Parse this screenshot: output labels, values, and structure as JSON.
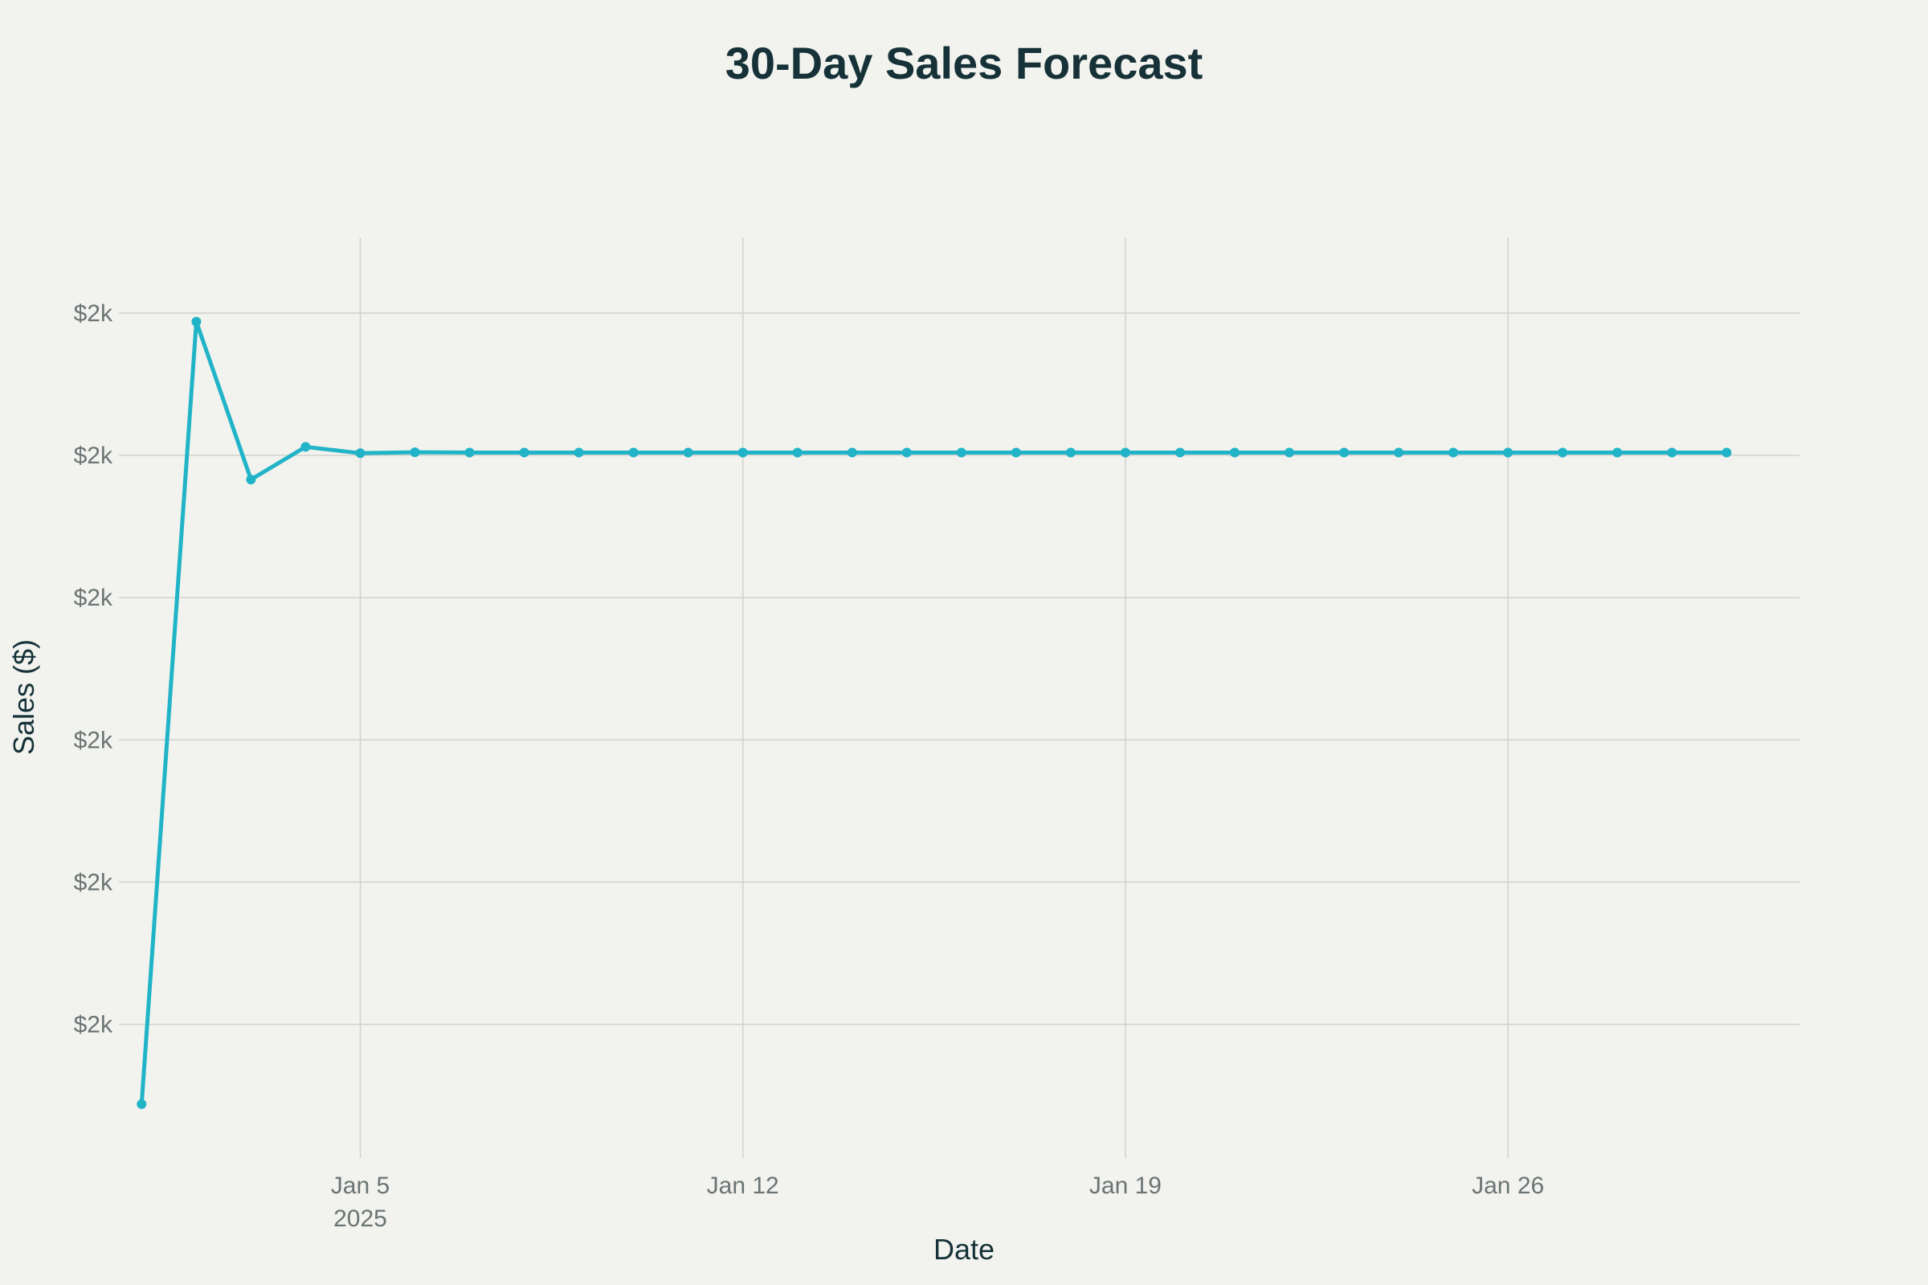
{
  "colors": {
    "background": "#f2f3ee",
    "series": "#21b3c7",
    "grid": "#cfd2cd",
    "title": "#163238",
    "tick": "#6b7374"
  },
  "chart_data": {
    "type": "line",
    "title": "30-Day Sales Forecast",
    "xlabel": "Date",
    "ylabel": "Sales ($)",
    "grid": true,
    "legend": "none",
    "x_range": [
      "2024-12-31T14:00",
      "2025-01-31T08:00"
    ],
    "x_ticks": [
      {
        "date": "2025-01-05",
        "label": "Jan 5",
        "sublabel": "2025"
      },
      {
        "date": "2025-01-12",
        "label": "Jan 12",
        "sublabel": ""
      },
      {
        "date": "2025-01-19",
        "label": "Jan 19",
        "sublabel": ""
      },
      {
        "date": "2025-01-26",
        "label": "Jan 26",
        "sublabel": ""
      }
    ],
    "y_range": [
      1690.6,
      1755.3
    ],
    "y_ticks": [
      {
        "value": 1700,
        "label": "$2k"
      },
      {
        "value": 1710,
        "label": "$2k"
      },
      {
        "value": 1720,
        "label": "$2k"
      },
      {
        "value": 1730,
        "label": "$2k"
      },
      {
        "value": 1740,
        "label": "$2k"
      },
      {
        "value": 1750,
        "label": "$2k"
      }
    ],
    "series": [
      {
        "x": [
          "2025-01-01",
          "2025-01-02",
          "2025-01-03",
          "2025-01-04",
          "2025-01-05",
          "2025-01-06",
          "2025-01-07",
          "2025-01-08",
          "2025-01-09",
          "2025-01-10",
          "2025-01-11",
          "2025-01-12",
          "2025-01-13",
          "2025-01-14",
          "2025-01-15",
          "2025-01-16",
          "2025-01-17",
          "2025-01-18",
          "2025-01-19",
          "2025-01-20",
          "2025-01-21",
          "2025-01-22",
          "2025-01-23",
          "2025-01-24",
          "2025-01-25",
          "2025-01-26",
          "2025-01-27",
          "2025-01-28",
          "2025-01-29",
          "2025-01-30"
        ],
        "values": [
          1694.4,
          1749.4,
          1738.3,
          1740.6,
          1740.15,
          1740.22,
          1740.2,
          1740.2,
          1740.2,
          1740.2,
          1740.2,
          1740.2,
          1740.2,
          1740.2,
          1740.2,
          1740.2,
          1740.2,
          1740.2,
          1740.2,
          1740.2,
          1740.2,
          1740.2,
          1740.2,
          1740.2,
          1740.2,
          1740.2,
          1740.2,
          1740.2,
          1740.2,
          1740.2
        ]
      }
    ]
  }
}
